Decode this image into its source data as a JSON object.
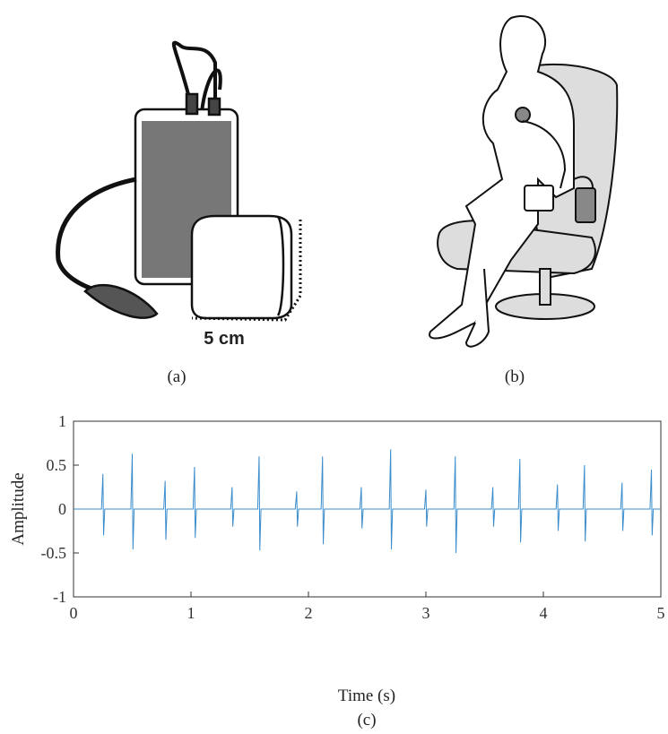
{
  "panels": {
    "a": {
      "caption": "(a)",
      "scale_label": "5 cm"
    },
    "b": {
      "caption": "(b)"
    }
  },
  "chart_data": {
    "type": "line",
    "caption": "(c)",
    "x_label": "Time (s)",
    "y_label": "Amplitude",
    "color": "#3a8ccc",
    "xlim": [
      0,
      5
    ],
    "ylim": [
      -1,
      1
    ],
    "xticks": [
      0,
      1,
      2,
      3,
      4,
      5
    ],
    "yticks": [
      -1,
      -0.5,
      0,
      0.5,
      1
    ],
    "x": [
      0,
      0.238,
      0.25,
      0.256,
      0.266,
      0.488,
      0.5,
      0.506,
      0.516,
      0.768,
      0.78,
      0.786,
      0.796,
      1.018,
      1.03,
      1.036,
      1.046,
      1.338,
      1.35,
      1.356,
      1.366,
      1.568,
      1.58,
      1.586,
      1.596,
      1.888,
      1.9,
      1.906,
      1.916,
      2.108,
      2.12,
      2.126,
      2.136,
      2.438,
      2.45,
      2.456,
      2.466,
      2.688,
      2.7,
      2.706,
      2.716,
      2.988,
      3,
      3.006,
      3.016,
      3.238,
      3.25,
      3.256,
      3.266,
      3.558,
      3.57,
      3.576,
      3.586,
      3.788,
      3.8,
      3.806,
      3.816,
      4.108,
      4.12,
      4.126,
      4.136,
      4.338,
      4.35,
      4.356,
      4.366,
      4.658,
      4.67,
      4.676,
      4.686,
      4.908,
      4.92,
      4.926,
      4.936,
      5
    ],
    "values": [
      0,
      0,
      0.4,
      -0.3,
      0,
      0,
      0.63,
      -0.46,
      0,
      0,
      0.32,
      -0.35,
      0,
      0,
      0.48,
      -0.33,
      0,
      0,
      0.25,
      -0.2,
      0,
      0,
      0.6,
      -0.47,
      0,
      0,
      0.2,
      -0.2,
      0,
      0,
      0.6,
      -0.4,
      0,
      0,
      0.25,
      -0.22,
      0,
      0,
      0.68,
      -0.46,
      0,
      0,
      0.22,
      -0.2,
      0,
      0,
      0.6,
      -0.5,
      0,
      0,
      0.25,
      -0.2,
      0,
      0,
      0.57,
      -0.38,
      0,
      0,
      0.28,
      -0.25,
      0,
      0,
      0.5,
      -0.37,
      0,
      0,
      0.3,
      -0.25,
      0,
      0,
      0.45,
      -0.3,
      0,
      0
    ]
  }
}
